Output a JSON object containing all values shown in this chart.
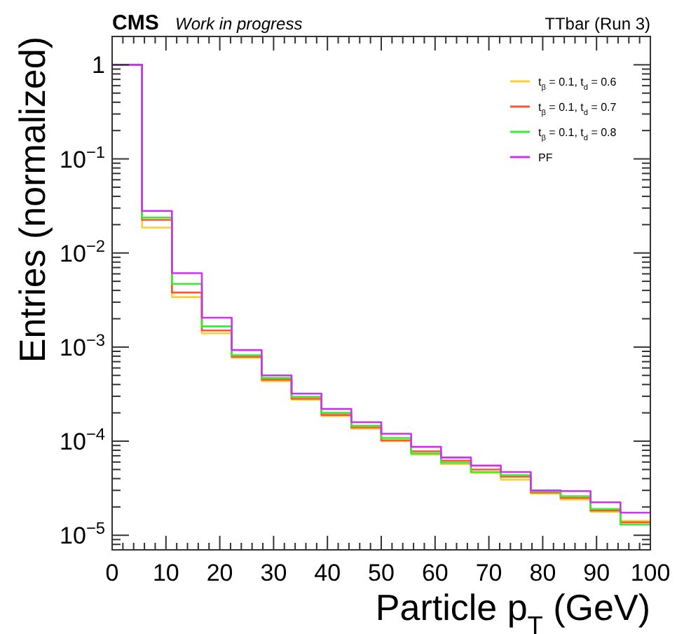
{
  "chart_data": {
    "type": "histogram",
    "title": "CMS",
    "subtitle": "Work in progress",
    "annotations": [
      "TTbar (Run 3)"
    ],
    "xlabel": "Particle p$_{T}$ (GeV)",
    "ylabel": "Entries (normalized)",
    "bins": [
      0,
      5.56,
      11.11,
      16.67,
      22.22,
      27.78,
      33.33,
      38.89,
      44.44,
      50,
      55.56,
      61.11,
      66.67,
      72.22,
      77.78,
      83.33,
      88.89,
      94.44,
      100
    ],
    "series": [
      {
        "name": "t$_{β}$ = 0.1, t$_{d}$ = 0.6",
        "color": "#ffcc33",
        "values": [
          1,
          0.0186,
          0.0034,
          0.0014,
          0.00077,
          0.000435,
          0.000276,
          0.000185,
          0.000136,
          0.0001,
          7.2e-05,
          5.7e-05,
          4.6e-05,
          3.9e-05,
          2.78e-05,
          2.4e-05,
          1.78e-05,
          1.42e-05
        ]
      },
      {
        "name": "t$_{β}$ = 0.1, t$_{d}$ = 0.7",
        "color": "#ff5533",
        "values": [
          1,
          0.0225,
          0.0038,
          0.0015,
          0.00079,
          0.00045,
          0.000283,
          0.00019,
          0.00014,
          0.000102,
          7.8e-05,
          6.2e-05,
          5e-05,
          4.2e-05,
          2.85e-05,
          2.5e-05,
          1.83e-05,
          1.37e-05
        ]
      },
      {
        "name": "t$_{β}$ = 0.1, t$_{d}$ = 0.8",
        "color": "#33ee33",
        "values": [
          1,
          0.0238,
          0.0047,
          0.00166,
          0.00082,
          0.00047,
          0.000296,
          0.0002,
          0.000146,
          0.000108,
          7.4e-05,
          5.9e-05,
          4.7e-05,
          4.35e-05,
          2.92e-05,
          2.6e-05,
          1.9e-05,
          1.3e-05
        ]
      },
      {
        "name": "PF",
        "color": "#cc33ee",
        "values": [
          1,
          0.028,
          0.0061,
          0.00205,
          0.00093,
          0.0005,
          0.00032,
          0.00022,
          0.000159,
          0.00012,
          8.7e-05,
          6.7e-05,
          5.5e-05,
          4.7e-05,
          3e-05,
          2.95e-05,
          2.24e-05,
          1.74e-05
        ]
      }
    ],
    "log": "y",
    "xlim": [
      0,
      100
    ],
    "ylim": [
      7e-06,
      2
    ],
    "xticks": [
      0,
      10,
      20,
      30,
      40,
      50,
      60,
      70,
      80,
      90,
      100
    ],
    "yticks": [
      {
        "value": 1e-05,
        "label": "10$^{−5}$"
      },
      {
        "value": 0.0001,
        "label": "10$^{−4}$"
      },
      {
        "value": 0.001,
        "label": "10$^{−3}$"
      },
      {
        "value": 0.01,
        "label": "10$^{−2}$"
      },
      {
        "value": 0.1,
        "label": "10$^{−1}$"
      },
      1
    ],
    "legend": "top right",
    "grid": false
  }
}
